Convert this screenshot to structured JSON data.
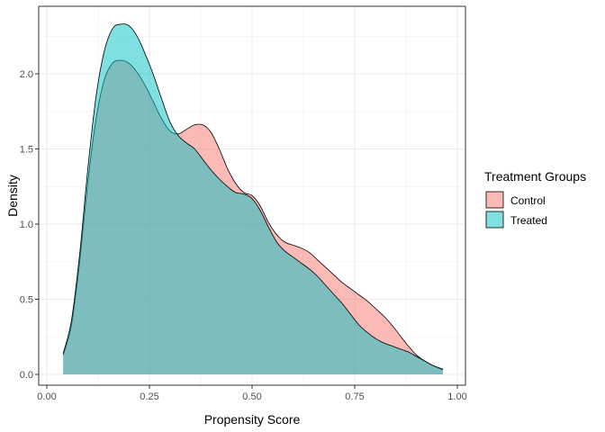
{
  "chart_data": {
    "type": "area",
    "title": "",
    "xlabel": "Propensity Score",
    "ylabel": "Density",
    "xlim": [
      0.0,
      1.0
    ],
    "ylim": [
      0.0,
      2.35
    ],
    "x_ticks": [
      "0.00",
      "0.25",
      "0.50",
      "0.75",
      "1.00"
    ],
    "y_ticks": [
      "0.0",
      "0.5",
      "1.0",
      "1.5",
      "2.0"
    ],
    "grid": true,
    "legend": {
      "title": "Treatment Groups",
      "position": "right",
      "entries": [
        "Control",
        "Treated"
      ]
    },
    "colors": {
      "Control": "#F8766D",
      "Treated": "#00BFC4",
      "fill_opacity": 0.5
    },
    "series": [
      {
        "name": "Control",
        "x": [
          0.04,
          0.06,
          0.08,
          0.1,
          0.12,
          0.14,
          0.16,
          0.18,
          0.2,
          0.22,
          0.24,
          0.26,
          0.28,
          0.3,
          0.32,
          0.34,
          0.36,
          0.38,
          0.4,
          0.42,
          0.44,
          0.46,
          0.48,
          0.5,
          0.52,
          0.54,
          0.56,
          0.58,
          0.6,
          0.62,
          0.64,
          0.66,
          0.68,
          0.7,
          0.72,
          0.74,
          0.76,
          0.78,
          0.8,
          0.82,
          0.84,
          0.86,
          0.88,
          0.9,
          0.92,
          0.94,
          0.965
        ],
        "y": [
          0.13,
          0.33,
          0.75,
          1.28,
          1.7,
          1.96,
          2.07,
          2.09,
          2.07,
          2.01,
          1.92,
          1.81,
          1.7,
          1.62,
          1.6,
          1.63,
          1.66,
          1.66,
          1.61,
          1.5,
          1.37,
          1.27,
          1.21,
          1.19,
          1.12,
          1.01,
          0.93,
          0.88,
          0.86,
          0.84,
          0.81,
          0.76,
          0.71,
          0.66,
          0.61,
          0.57,
          0.53,
          0.49,
          0.44,
          0.39,
          0.33,
          0.26,
          0.19,
          0.13,
          0.09,
          0.06,
          0.03
        ]
      },
      {
        "name": "Treated",
        "x": [
          0.04,
          0.06,
          0.08,
          0.1,
          0.12,
          0.14,
          0.16,
          0.18,
          0.2,
          0.22,
          0.24,
          0.26,
          0.28,
          0.3,
          0.32,
          0.34,
          0.36,
          0.38,
          0.4,
          0.42,
          0.44,
          0.46,
          0.48,
          0.5,
          0.52,
          0.54,
          0.56,
          0.58,
          0.6,
          0.62,
          0.64,
          0.66,
          0.68,
          0.7,
          0.72,
          0.74,
          0.76,
          0.78,
          0.8,
          0.82,
          0.84,
          0.86,
          0.88,
          0.9,
          0.92,
          0.94,
          0.965
        ],
        "y": [
          0.14,
          0.36,
          0.8,
          1.37,
          1.85,
          2.15,
          2.3,
          2.33,
          2.32,
          2.25,
          2.13,
          1.99,
          1.83,
          1.68,
          1.59,
          1.54,
          1.5,
          1.43,
          1.36,
          1.3,
          1.25,
          1.21,
          1.2,
          1.17,
          1.09,
          0.98,
          0.88,
          0.82,
          0.78,
          0.74,
          0.7,
          0.65,
          0.59,
          0.53,
          0.47,
          0.4,
          0.33,
          0.28,
          0.24,
          0.21,
          0.19,
          0.17,
          0.15,
          0.12,
          0.09,
          0.06,
          0.035
        ]
      }
    ]
  }
}
